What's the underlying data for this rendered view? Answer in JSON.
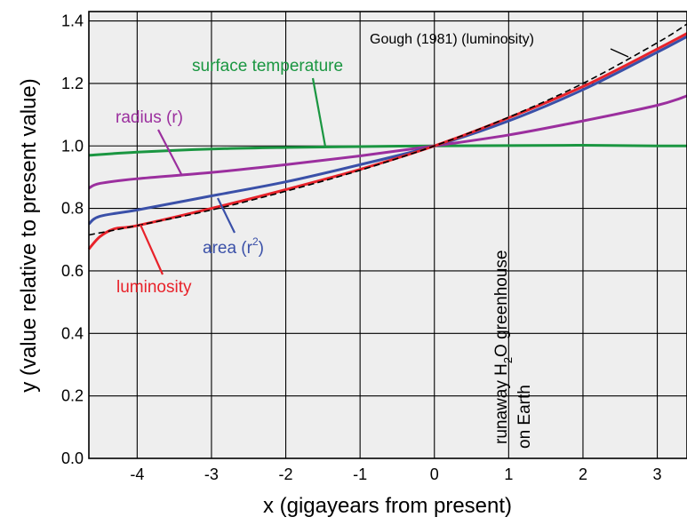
{
  "chart_data": {
    "type": "line",
    "title": "",
    "xlabel": "x (gigayears from present)",
    "ylabel": "y (value relative to present value)",
    "xlim": [
      -4.65,
      3.4
    ],
    "ylim": [
      0.0,
      1.43
    ],
    "xticks": [
      -4,
      -3,
      -2,
      -1,
      0,
      1,
      2,
      3
    ],
    "yticks": [
      0.0,
      0.2,
      0.4,
      0.6,
      0.8,
      1.0,
      1.2,
      1.4
    ],
    "xtick_labels": [
      "-4",
      "-3",
      "-2",
      "-1",
      "0",
      "1",
      "2",
      "3"
    ],
    "ytick_labels": [
      "0.0",
      "0.2",
      "0.4",
      "0.6",
      "0.8",
      "1.0",
      "1.2",
      "1.4"
    ],
    "grid": true,
    "background": "#eeeeee",
    "series": [
      {
        "name": "surface temperature",
        "color": "#1a9641",
        "x": [
          -4.65,
          -4.0,
          -3.0,
          -2.0,
          -1.0,
          0.0,
          1.0,
          2.0,
          3.0,
          3.4
        ],
        "y": [
          0.97,
          0.98,
          0.99,
          0.995,
          0.998,
          1.0,
          1.001,
          1.002,
          1.0,
          1.0
        ]
      },
      {
        "name": "radius (r)",
        "color": "#9b2f9e",
        "x": [
          -4.65,
          -4.5,
          -4.0,
          -3.0,
          -2.0,
          -1.0,
          0.0,
          1.0,
          2.0,
          3.0,
          3.4
        ],
        "y": [
          0.865,
          0.88,
          0.895,
          0.915,
          0.94,
          0.968,
          1.0,
          1.035,
          1.08,
          1.13,
          1.16
        ]
      },
      {
        "name": "area (r²)",
        "color": "#3a50a8",
        "x": [
          -4.65,
          -4.5,
          -4.0,
          -3.0,
          -2.0,
          -1.0,
          0.0,
          1.0,
          2.0,
          3.0,
          3.4
        ],
        "y": [
          0.75,
          0.775,
          0.795,
          0.84,
          0.885,
          0.94,
          1.0,
          1.08,
          1.18,
          1.3,
          1.35
        ]
      },
      {
        "name": "luminosity",
        "color": "#e8222a",
        "x": [
          -4.65,
          -4.5,
          -4.3,
          -4.0,
          -3.0,
          -2.0,
          -1.0,
          0.0,
          1.0,
          2.0,
          3.0,
          3.4
        ],
        "y": [
          0.67,
          0.71,
          0.735,
          0.745,
          0.8,
          0.86,
          0.925,
          1.0,
          1.09,
          1.19,
          1.31,
          1.36
        ]
      },
      {
        "name": "Gough (1981) (luminosity)",
        "color": "#000000",
        "dashed": true,
        "x": [
          -4.65,
          -4.0,
          -3.0,
          -2.0,
          -1.0,
          0.0,
          1.0,
          2.0,
          3.0,
          3.4
        ],
        "y": [
          0.715,
          0.745,
          0.795,
          0.855,
          0.922,
          1.0,
          1.092,
          1.2,
          1.33,
          1.39
        ]
      }
    ],
    "annotations": {
      "surface_temperature": "surface temperature",
      "gough": "Gough (1981) (luminosity)",
      "radius": "radius (r)",
      "area_main": "area (r",
      "area_sup": "2",
      "area_close": ")",
      "luminosity": "luminosity",
      "runaway_a": "runaway H",
      "runaway_sub": "2",
      "runaway_b": "O greenhouse",
      "on_earth": "on Earth"
    }
  }
}
